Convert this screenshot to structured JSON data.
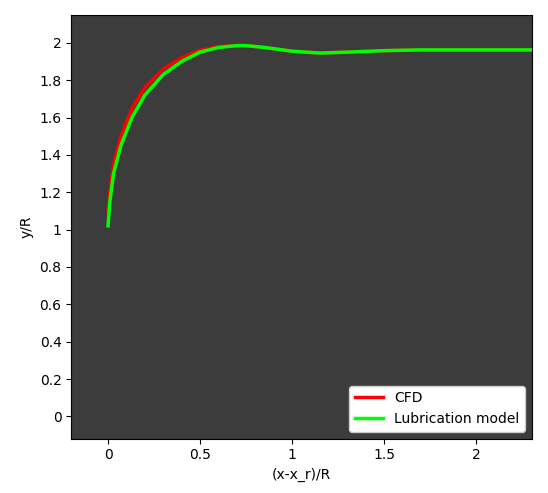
{
  "chart_data": {
    "type": "line",
    "x_label": "(x-x_r)/R",
    "y_label": "y/R",
    "xlim": [
      -0.2,
      2.3
    ],
    "ylim": [
      -0.12,
      2.15
    ],
    "xticks": [
      0,
      0.5,
      1,
      1.5,
      2
    ],
    "yticks": [
      0,
      0.2,
      0.4,
      0.6,
      0.8,
      1,
      1.2,
      1.4,
      1.6,
      1.8,
      2
    ],
    "legend": "lower right",
    "series": [
      {
        "name": "CFD",
        "color": "#ff0000",
        "x": [
          0,
          0.01,
          0.03,
          0.07,
          0.13,
          0.2,
          0.3,
          0.4,
          0.5,
          0.6,
          0.7,
          0.75,
          0.85,
          1.0,
          1.15,
          1.3,
          1.5,
          1.7,
          2.0,
          2.3
        ],
        "values": [
          1.1,
          1.2,
          1.35,
          1.5,
          1.65,
          1.76,
          1.86,
          1.92,
          1.96,
          1.98,
          1.985,
          1.985,
          1.975,
          1.955,
          1.945,
          1.95,
          1.958,
          1.962,
          1.962,
          1.962
        ]
      },
      {
        "name": "Lubrication model",
        "color": "#00ff00",
        "x": [
          0,
          0.01,
          0.03,
          0.07,
          0.13,
          0.2,
          0.3,
          0.4,
          0.5,
          0.6,
          0.7,
          0.75,
          0.85,
          1.0,
          1.15,
          1.3,
          1.5,
          1.7,
          2.0,
          2.3
        ],
        "values": [
          1.02,
          1.15,
          1.3,
          1.45,
          1.6,
          1.72,
          1.83,
          1.9,
          1.95,
          1.975,
          1.985,
          1.985,
          1.975,
          1.955,
          1.945,
          1.95,
          1.958,
          1.962,
          1.962,
          1.962
        ]
      }
    ]
  }
}
